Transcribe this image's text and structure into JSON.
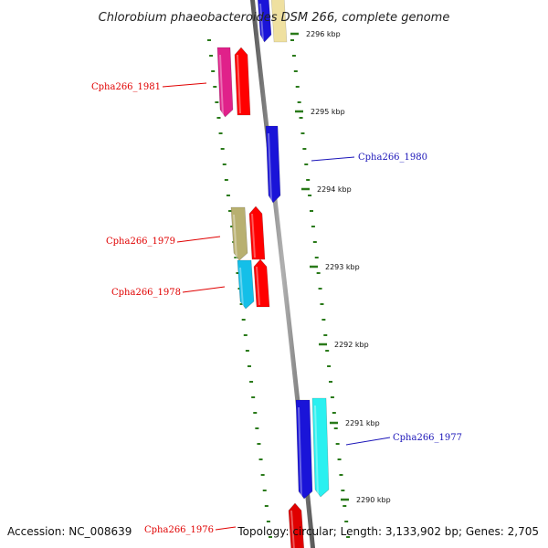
{
  "title": "Chlorobium phaeobacteroides DSM 266, complete genome",
  "footer": {
    "accession": "Accession: NC_008639",
    "topology": "Topology: circular; Length: 3,133,902 bp; Genes: 2,705"
  },
  "ticks": [
    "2296 kbp",
    "2295 kbp",
    "2294 kbp",
    "2293 kbp",
    "2292 kbp",
    "2291 kbp",
    "2290 kbp"
  ],
  "genes": [
    {
      "label": "Cpha266_1981",
      "strand": "reverse",
      "color": "#e0218a"
    },
    {
      "label": "Cpha266_1980",
      "strand": "forward",
      "color": "#1a14d8"
    },
    {
      "label": "Cpha266_1979",
      "strand": "reverse",
      "color": "#b8b070"
    },
    {
      "label": "Cpha266_1978",
      "strand": "reverse",
      "color": "#14bfe8"
    },
    {
      "label": "Cpha266_1977",
      "strand": "forward",
      "color": "#1a14d8"
    },
    {
      "label": "Cpha266_1976",
      "strand": "reverse",
      "color": "#e00000"
    }
  ],
  "colors": {
    "reverse_label": "#e00000",
    "forward_label": "#1a14b8",
    "dash": "#2a7a1a",
    "backbone": "#808080",
    "red_arrow": "#ff0000",
    "cyan_arrow": "#2af0f0",
    "yellow_gene": "#efe0a0"
  }
}
